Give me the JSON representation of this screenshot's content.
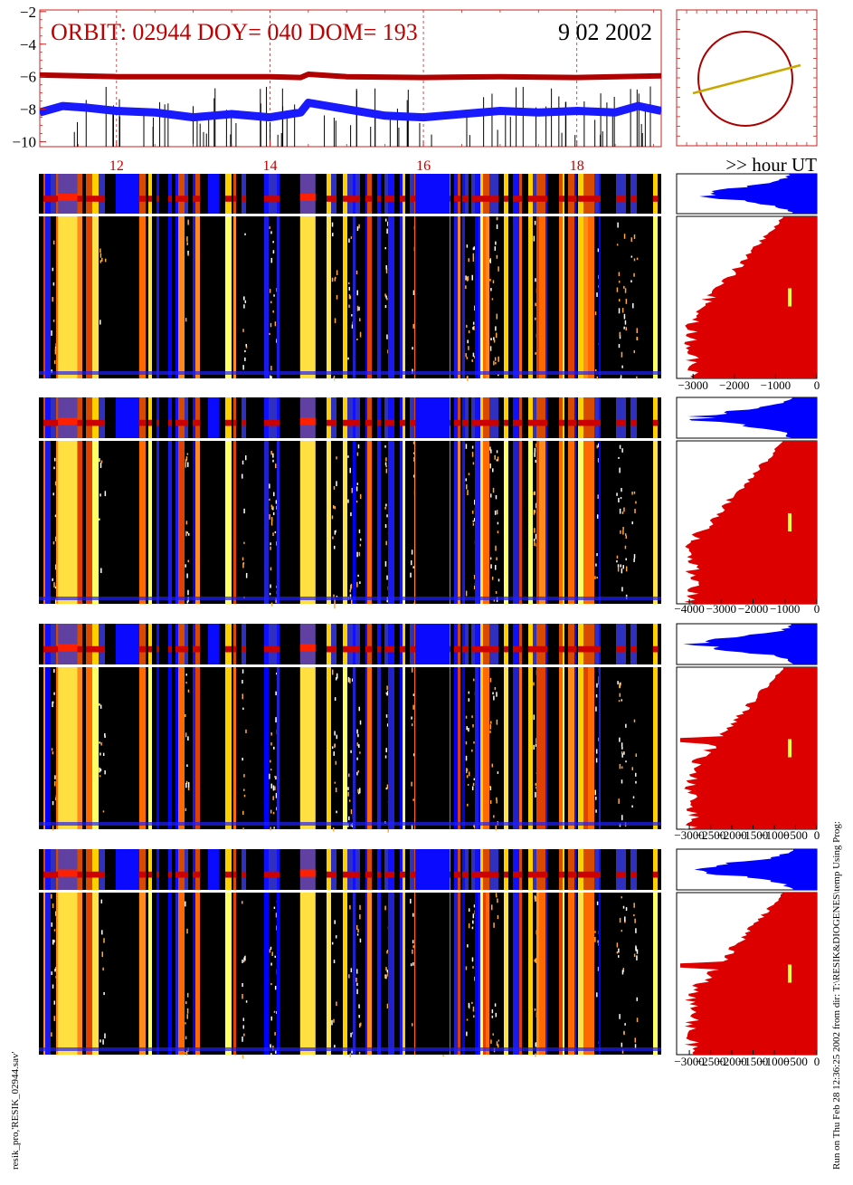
{
  "header": {
    "orbit_label": "ORBIT: 02944 DOY=  040 DOM=  193",
    "date": "9 02 2002",
    "unit_label": ">> hour UT"
  },
  "footer": {
    "left_caption": "resik_pro,'RESIK_02944.sav'",
    "right_caption": "Run on Thu Feb 28 12:36:25 2002  from dir: T:\\RESIK&DIOGENES\\temp Using Prog:"
  },
  "colors": {
    "axis_red": "#cc2222",
    "title_red": "#c00000",
    "curve_dark_red": "#b00000",
    "curve_blue": "#1a1aff",
    "hist_red": "#dd0000",
    "hist_blue": "#0000ff",
    "marker_yellow": "#ffff33",
    "orbit_circle": "#aa0000",
    "orbit_line": "#c8a800"
  },
  "chart_data": [
    {
      "type": "line",
      "name": "top-timeline",
      "x_ticks": [
        12,
        14,
        16,
        18
      ],
      "y_ticks": [
        -2,
        -4,
        -6,
        -8,
        -10
      ],
      "xlim": [
        11.0,
        19.1
      ],
      "ylim": [
        -10.3,
        -1.9
      ],
      "grid": "vertical dashed at 12, 14, 16, 18",
      "series": [
        {
          "values_x": [
            11.0,
            12.0,
            13.0,
            14.0,
            14.4,
            14.5,
            15.0,
            16.0,
            17.0,
            18.0,
            19.1
          ],
          "values_y": [
            -5.9,
            -6.0,
            -6.0,
            -6.0,
            -6.05,
            -5.85,
            -6.0,
            -6.05,
            -6.0,
            -6.05,
            -5.95
          ]
        },
        {
          "values_x": [
            11.0,
            11.3,
            11.6,
            12.0,
            12.5,
            13.0,
            13.5,
            14.0,
            14.4,
            14.5,
            15.0,
            15.5,
            16.0,
            16.5,
            17.0,
            17.5,
            18.0,
            18.5,
            18.8,
            19.1
          ],
          "values_y": [
            -8.2,
            -7.8,
            -7.9,
            -8.1,
            -8.2,
            -8.5,
            -8.3,
            -8.5,
            -8.2,
            -7.6,
            -8.0,
            -8.4,
            -8.5,
            -8.3,
            -8.1,
            -8.2,
            -8.1,
            -8.2,
            -7.8,
            -8.1
          ]
        }
      ]
    },
    {
      "type": "line",
      "name": "orbit-diagram",
      "description_values": {
        "circle": true,
        "track": true
      }
    },
    {
      "type": "area",
      "name": "spectrum-profile-1",
      "x_ticks": [
        -3000,
        -2000,
        -1000,
        0
      ],
      "x_tick_labels": [
        "−3000",
        "−2000",
        "−1000",
        "0"
      ],
      "xlim": [
        -3400,
        0
      ]
    },
    {
      "type": "area",
      "name": "spectrum-profile-2",
      "x_ticks": [
        -4000,
        -3000,
        -2000,
        -1000,
        0
      ],
      "x_tick_labels": [
        "−4000",
        "−3000",
        "−2000",
        "−1000",
        "0"
      ],
      "xlim": [
        -4400,
        0
      ]
    },
    {
      "type": "area",
      "name": "spectrum-profile-3",
      "x_ticks": [
        -3000,
        -2500,
        -2000,
        -1500,
        -1000,
        -500,
        0
      ],
      "x_tick_labels": [
        "−3000",
        "−2500",
        "−2000",
        "−1500",
        "−1000",
        "−500",
        "0"
      ],
      "xlim": [
        -3300,
        0
      ]
    },
    {
      "type": "area",
      "name": "spectrum-profile-4",
      "x_ticks": [
        -3000,
        -2500,
        -2000,
        -1500,
        -1000,
        -500,
        0
      ],
      "x_tick_labels": [
        "−3000",
        "−2500",
        "−2000",
        "−1500",
        "−1000",
        "−500",
        "0"
      ],
      "xlim": [
        -3300,
        0
      ]
    }
  ]
}
